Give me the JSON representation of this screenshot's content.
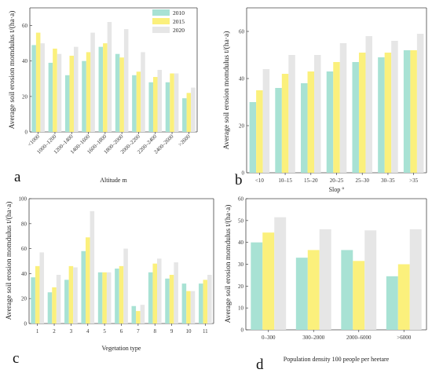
{
  "colors": {
    "2010": "#a8e2d4",
    "2015": "#fbf07c",
    "2020": "#e6e6e6"
  },
  "legend": [
    "2010",
    "2015",
    "2020"
  ],
  "chart_data": [
    {
      "type": "bar",
      "panel_label": "a",
      "xlabel": "Altitude m",
      "ylabel": "Average soil erosion momdulus t/(ha·a)",
      "ylim": [
        0,
        70
      ],
      "yticks": [
        0,
        20,
        40,
        60
      ],
      "categories": [
        "<1000",
        "1000–1200",
        "1200–1400",
        "1400–1600",
        "1600–1800",
        "1800–2000",
        "2000–2200",
        "2200–2400",
        "2400–2600",
        ">2600"
      ],
      "series": [
        {
          "name": "2010",
          "values": [
            49,
            39,
            32,
            40,
            48,
            44,
            32,
            28,
            28,
            19
          ]
        },
        {
          "name": "2015",
          "values": [
            56,
            47,
            43,
            45,
            50,
            42,
            34,
            31,
            33,
            22
          ]
        },
        {
          "name": "2020",
          "values": [
            50,
            44,
            48,
            56,
            62,
            58,
            45,
            35,
            33,
            25
          ]
        }
      ],
      "legend_position": "top-right"
    },
    {
      "type": "bar",
      "panel_label": "b",
      "xlabel": "Slop °",
      "ylabel": "Average soil erosion momdulus t/(ha·a)",
      "ylim": [
        0,
        70
      ],
      "yticks": [
        0,
        20,
        40,
        60
      ],
      "categories": [
        "<10",
        "10–15",
        "15–20",
        "20–25",
        "25–30",
        "30–35",
        ">35"
      ],
      "series": [
        {
          "name": "2010",
          "values": [
            30,
            36,
            38,
            43,
            47,
            49,
            52
          ]
        },
        {
          "name": "2015",
          "values": [
            35,
            42,
            43,
            47,
            51,
            51,
            52
          ]
        },
        {
          "name": "2020",
          "values": [
            44,
            50,
            50,
            55,
            58,
            56,
            59
          ]
        }
      ]
    },
    {
      "type": "bar",
      "panel_label": "c",
      "xlabel": "Vegetation type",
      "ylabel": "Average soil erosion momdulus t/(ha·a)",
      "ylim": [
        0,
        100
      ],
      "yticks": [
        0,
        20,
        40,
        60,
        80,
        100
      ],
      "categories": [
        "1",
        "2",
        "3",
        "4",
        "5",
        "6",
        "7",
        "8",
        "9",
        "10",
        "11"
      ],
      "series": [
        {
          "name": "2010",
          "values": [
            37,
            25,
            35,
            58,
            41,
            44,
            14,
            41,
            36,
            32,
            32
          ]
        },
        {
          "name": "2015",
          "values": [
            46,
            29,
            46,
            69,
            41,
            46,
            10,
            48,
            39,
            26,
            35
          ]
        },
        {
          "name": "2020",
          "values": [
            57,
            39,
            45,
            90,
            41,
            60,
            15,
            52,
            49,
            26,
            39
          ]
        }
      ]
    },
    {
      "type": "bar",
      "panel_label": "d",
      "xlabel": "Population density 100 people per heetare",
      "ylabel": "Average soil erosion momdulus t/(ha·a)",
      "ylim": [
        0,
        60
      ],
      "yticks": [
        0,
        10,
        20,
        30,
        40,
        50,
        60
      ],
      "categories": [
        "0–300",
        "300–2000",
        "2000–6000",
        ">6000"
      ],
      "series": [
        {
          "name": "2010",
          "values": [
            40,
            33,
            36.5,
            24.5
          ]
        },
        {
          "name": "2015",
          "values": [
            44.5,
            36.5,
            31.5,
            30
          ]
        },
        {
          "name": "2020",
          "values": [
            51.5,
            46,
            45.5,
            46
          ]
        }
      ]
    }
  ]
}
